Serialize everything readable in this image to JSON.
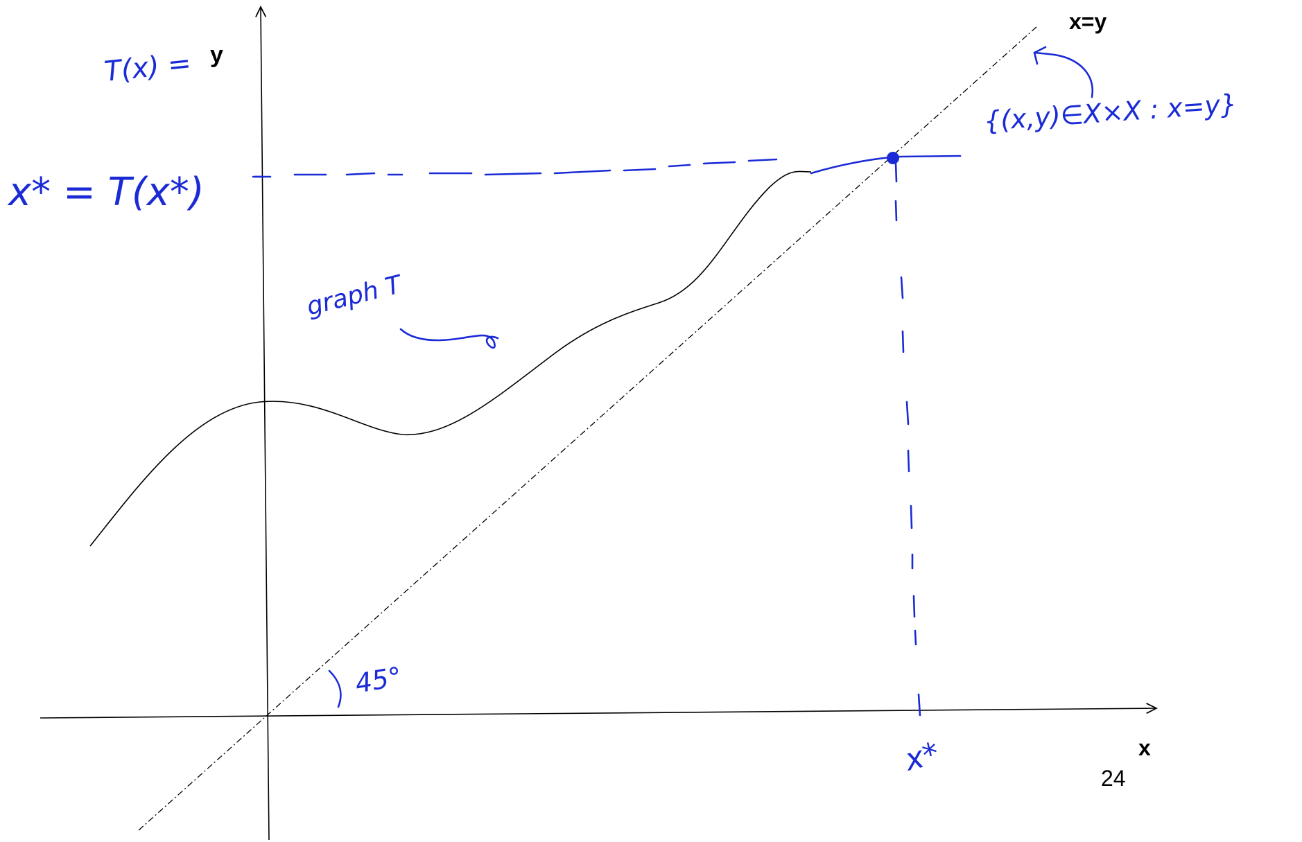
{
  "printed_labels": {
    "diagonal_label": "x=y",
    "y_suffix": "y",
    "x_axis_label": "x",
    "page_number": "24"
  },
  "handwritten_annotations": {
    "y_axis_label": "T(x) =",
    "fixed_point_value": "x* = T(x*)",
    "curve_label": "graph T",
    "diagonal_set": "{(x,y)∈X×X : x=y}",
    "angle": "45°",
    "fixed_point_x": "x*"
  },
  "colors": {
    "ink": "#1a2bd6",
    "axes": "#000000",
    "curve": "#000000"
  },
  "icons": {
    "curve_pointer": "squiggle-arrow-icon",
    "diagonal_pointer": "curved-arrow-icon"
  }
}
